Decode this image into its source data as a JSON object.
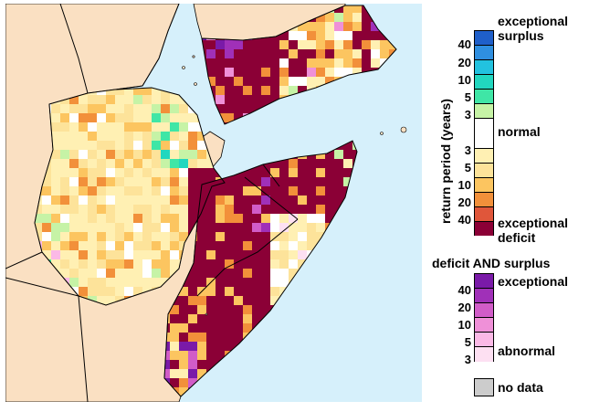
{
  "colors": {
    "ocean": "#d6f0fb",
    "land_other": "#fae0c2",
    "border": "#000000",
    "ex_surplus": "#1f5fc9",
    "surplus_40": "#2f8fe0",
    "surplus_20": "#22c2df",
    "surplus_10": "#21d7bf",
    "surplus_5": "#3fe6a6",
    "surplus_3": "#c6f3a6",
    "normal": "#ffffff",
    "deficit_3": "#fff0b3",
    "deficit_5": "#fde39a",
    "deficit_10": "#fcc560",
    "deficit_20": "#f2903a",
    "deficit_40": "#e0563a",
    "ex_deficit": "#8b0036",
    "both_ex": "#7a1aa8",
    "both_40": "#a030b8",
    "both_20": "#d15cc8",
    "both_10": "#ef90d8",
    "both_5": "#fbb9e6",
    "both_3": "#fde0f2",
    "no_data": "#cccccc"
  },
  "legend": {
    "axis_title": "return period (years)",
    "exceptional_surplus": "exceptional\nsurplus",
    "normal": "normal",
    "exceptional_deficit": "exceptional\ndeficit",
    "surplus_ticks": [
      "40",
      "20",
      "10",
      "5",
      "3"
    ],
    "deficit_ticks": [
      "3",
      "5",
      "10",
      "20",
      "40"
    ],
    "both_title": "deficit AND surplus",
    "both_exceptional": "exceptional",
    "both_abnormal": "abnormal",
    "both_ticks": [
      "40",
      "20",
      "10",
      "5",
      "3"
    ],
    "no_data": "no data"
  }
}
